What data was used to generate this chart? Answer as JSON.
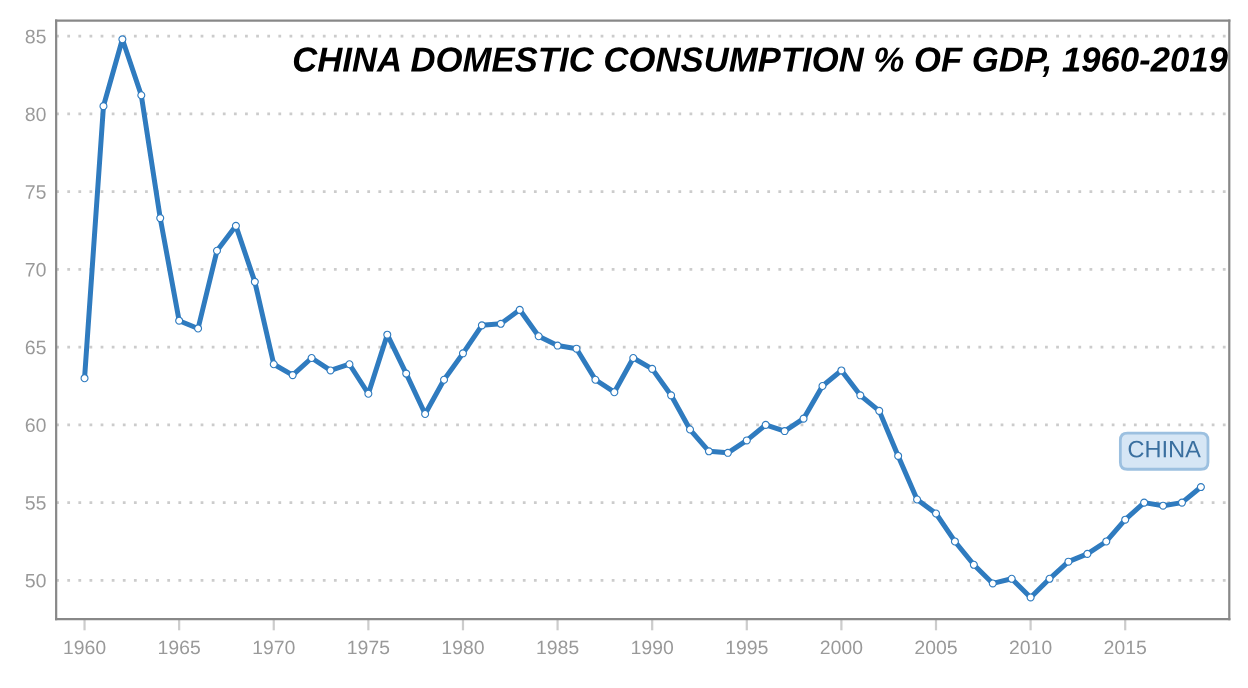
{
  "chart_data": {
    "type": "line",
    "title": "CHINA DOMESTIC CONSUMPTION % OF GDP, 1960-2019",
    "x": [
      1960,
      1961,
      1962,
      1963,
      1964,
      1965,
      1966,
      1967,
      1968,
      1969,
      1970,
      1971,
      1972,
      1973,
      1974,
      1975,
      1976,
      1977,
      1978,
      1979,
      1980,
      1981,
      1982,
      1983,
      1984,
      1985,
      1986,
      1987,
      1988,
      1989,
      1990,
      1991,
      1992,
      1993,
      1994,
      1995,
      1996,
      1997,
      1998,
      1999,
      2000,
      2001,
      2002,
      2003,
      2004,
      2005,
      2006,
      2007,
      2008,
      2009,
      2010,
      2011,
      2012,
      2013,
      2014,
      2015,
      2016,
      2017,
      2018,
      2019
    ],
    "series": [
      {
        "name": "CHINA",
        "color": "#2f7bbf",
        "values": [
          63.0,
          80.5,
          84.8,
          81.2,
          73.3,
          66.7,
          66.2,
          71.2,
          72.8,
          69.2,
          63.9,
          63.2,
          64.3,
          63.5,
          63.9,
          62.0,
          65.8,
          63.3,
          60.7,
          62.9,
          64.6,
          66.4,
          66.5,
          67.4,
          65.7,
          65.1,
          64.9,
          62.9,
          62.1,
          64.3,
          63.6,
          61.9,
          59.7,
          58.3,
          58.2,
          59.0,
          60.0,
          59.6,
          60.4,
          62.5,
          63.5,
          61.9,
          60.9,
          58.0,
          55.2,
          54.3,
          52.5,
          51.0,
          49.8,
          50.1,
          48.9,
          50.1,
          51.2,
          51.7,
          52.5,
          53.9,
          55.0,
          54.8,
          55.0,
          56.0
        ]
      }
    ],
    "xlim": [
      1958.5,
      2020.5
    ],
    "ylim": [
      47.5,
      86
    ],
    "xticks": [
      1960,
      1965,
      1970,
      1975,
      1980,
      1985,
      1990,
      1995,
      2000,
      2005,
      2010,
      2015
    ],
    "yticks": [
      50,
      55,
      60,
      65,
      70,
      75,
      80,
      85
    ],
    "grid": "y",
    "marker": "circle",
    "line_style": "solid"
  }
}
